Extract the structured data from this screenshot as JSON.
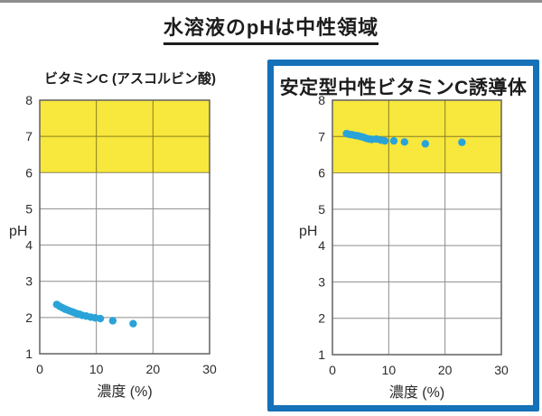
{
  "page": {
    "title": "水溶液のpHは中性領域"
  },
  "colors": {
    "highlight_yellow": "#f8e73c",
    "point_cyan": "#29a3d8",
    "box_blue": "#1571b8",
    "grid": "#8c8c8c",
    "plot_border": "#606060",
    "text": "#2b2b2b"
  },
  "chart_data": [
    {
      "type": "scatter",
      "title": "ビタミンC (アスコルビン酸)",
      "xlabel": "濃度 (%)",
      "ylabel": "pH",
      "xlim": [
        0,
        30
      ],
      "ylim": [
        1,
        8
      ],
      "xticks": [
        "0",
        "10",
        "20",
        "30"
      ],
      "xtick_values": [
        0,
        10,
        20,
        30
      ],
      "yticks": [
        "1",
        "2",
        "3",
        "4",
        "5",
        "6",
        "7",
        "8"
      ],
      "ytick_values": [
        1,
        2,
        3,
        4,
        5,
        6,
        7,
        8
      ],
      "highlight_band": [
        6,
        8
      ],
      "grid": true,
      "points": [
        [
          3.0,
          2.36
        ],
        [
          3.5,
          2.31
        ],
        [
          4.0,
          2.27
        ],
        [
          4.5,
          2.23
        ],
        [
          5.0,
          2.2
        ],
        [
          5.5,
          2.17
        ],
        [
          6.0,
          2.14
        ],
        [
          6.5,
          2.11
        ],
        [
          7.0,
          2.09
        ],
        [
          7.5,
          2.06
        ],
        [
          8.2,
          2.04
        ],
        [
          9.0,
          2.01
        ],
        [
          9.8,
          1.99
        ],
        [
          10.7,
          1.97
        ],
        [
          12.9,
          1.91
        ],
        [
          16.5,
          1.83
        ]
      ]
    },
    {
      "type": "scatter",
      "title": "安定型中性ビタミンC誘導体",
      "xlabel": "濃度 (%)",
      "ylabel": "pH",
      "xlim": [
        0,
        30
      ],
      "ylim": [
        1,
        8
      ],
      "xticks": [
        "0",
        "10",
        "20",
        "30"
      ],
      "xtick_values": [
        0,
        10,
        20,
        30
      ],
      "yticks": [
        "1",
        "2",
        "3",
        "4",
        "5",
        "6",
        "7",
        "8"
      ],
      "ytick_values": [
        1,
        2,
        3,
        4,
        5,
        6,
        7,
        8
      ],
      "highlight_band": [
        6,
        8
      ],
      "grid": true,
      "points": [
        [
          2.5,
          7.08
        ],
        [
          3.0,
          7.06
        ],
        [
          3.5,
          7.05
        ],
        [
          4.0,
          7.03
        ],
        [
          4.5,
          7.02
        ],
        [
          5.0,
          7.0
        ],
        [
          5.5,
          6.98
        ],
        [
          6.0,
          6.95
        ],
        [
          6.5,
          6.93
        ],
        [
          7.0,
          6.92
        ],
        [
          7.8,
          6.93
        ],
        [
          8.6,
          6.9
        ],
        [
          9.3,
          6.88
        ],
        [
          10.9,
          6.88
        ],
        [
          12.8,
          6.85
        ],
        [
          16.5,
          6.8
        ],
        [
          23.0,
          6.84
        ]
      ]
    }
  ]
}
